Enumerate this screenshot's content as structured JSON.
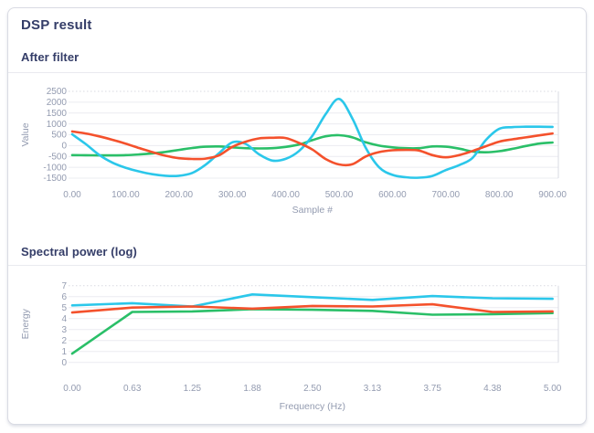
{
  "card": {
    "title": "DSP result"
  },
  "sections": [
    {
      "title": "After filter"
    },
    {
      "title": "Spectral power (log)"
    }
  ],
  "colors": {
    "heading": "#343d68",
    "axis_text": "#939bb0",
    "grid": "#ebecf1",
    "grid_top_dashed": "#d8d9e1",
    "plot_right_border": "#d9dbe3",
    "series_cyan": "#2bc7ea",
    "series_red": "#f4512c",
    "series_green": "#2abf68"
  },
  "chart_data": [
    {
      "type": "line",
      "title": "After filter",
      "xlabel": "Sample #",
      "ylabel": "Value",
      "xlim": [
        0,
        900
      ],
      "ylim": [
        -1500,
        2500
      ],
      "grid": true,
      "legend": "none",
      "smooth": true,
      "xticks": [
        "0.00",
        "100.00",
        "200.00",
        "300.00",
        "400.00",
        "500.00",
        "600.00",
        "700.00",
        "800.00",
        "900.00"
      ],
      "yticks": [
        "2500",
        "2000",
        "1500",
        "1000",
        "500",
        "0",
        "-500",
        "-1000",
        "-1500"
      ],
      "x": [
        0,
        25,
        50,
        75,
        100,
        125,
        150,
        175,
        200,
        225,
        250,
        275,
        300,
        325,
        350,
        375,
        400,
        425,
        450,
        475,
        500,
        525,
        550,
        575,
        600,
        625,
        650,
        675,
        700,
        725,
        750,
        775,
        800,
        825,
        850,
        875,
        900
      ],
      "series": [
        {
          "name": "green",
          "color": "#2abf68",
          "values": [
            -440,
            -445,
            -450,
            -450,
            -440,
            -410,
            -360,
            -290,
            -200,
            -110,
            -50,
            -40,
            -80,
            -120,
            -130,
            -120,
            -60,
            50,
            250,
            430,
            480,
            380,
            150,
            0,
            -80,
            -120,
            -120,
            -40,
            -50,
            -140,
            -270,
            -310,
            -260,
            -150,
            -20,
            90,
            140
          ]
        },
        {
          "name": "cyan",
          "color": "#2bc7ea",
          "values": [
            520,
            80,
            -420,
            -780,
            -1020,
            -1190,
            -1320,
            -1390,
            -1390,
            -1260,
            -880,
            -350,
            150,
            80,
            -400,
            -690,
            -610,
            -250,
            450,
            1450,
            2150,
            1250,
            -100,
            -1000,
            -1350,
            -1460,
            -1480,
            -1400,
            -1130,
            -900,
            -570,
            250,
            770,
            850,
            870,
            870,
            860
          ]
        },
        {
          "name": "red",
          "color": "#f4512c",
          "values": [
            650,
            560,
            430,
            270,
            90,
            -110,
            -300,
            -470,
            -580,
            -615,
            -600,
            -450,
            -60,
            180,
            330,
            360,
            350,
            120,
            -180,
            -620,
            -870,
            -860,
            -500,
            -300,
            -215,
            -200,
            -230,
            -440,
            -540,
            -440,
            -250,
            -30,
            180,
            290,
            380,
            470,
            560
          ]
        }
      ]
    },
    {
      "type": "line",
      "title": "Spectral power (log)",
      "xlabel": "Frequency (Hz)",
      "ylabel": "Energy",
      "xlim": [
        0,
        5
      ],
      "ylim": [
        0,
        7
      ],
      "grid": true,
      "legend": "none",
      "smooth": false,
      "xticks": [
        "0.00",
        "0.63",
        "1.25",
        "1.88",
        "2.50",
        "3.13",
        "3.75",
        "4.38",
        "5.00"
      ],
      "yticks": [
        "7",
        "6",
        "5",
        "4",
        "3",
        "2",
        "1",
        "0"
      ],
      "x": [
        0,
        0.625,
        1.25,
        1.875,
        2.5,
        3.125,
        3.75,
        4.375,
        5
      ],
      "series": [
        {
          "name": "green",
          "color": "#2abf68",
          "values": [
            0.8,
            4.6,
            4.65,
            4.85,
            4.8,
            4.7,
            4.35,
            4.4,
            4.5
          ]
        },
        {
          "name": "cyan",
          "color": "#2bc7ea",
          "values": [
            5.2,
            5.4,
            5.1,
            6.2,
            5.95,
            5.7,
            6.05,
            5.85,
            5.8
          ]
        },
        {
          "name": "red",
          "color": "#f4512c",
          "values": [
            4.55,
            5.0,
            5.1,
            4.9,
            5.15,
            5.1,
            5.3,
            4.6,
            4.65
          ]
        }
      ]
    }
  ]
}
